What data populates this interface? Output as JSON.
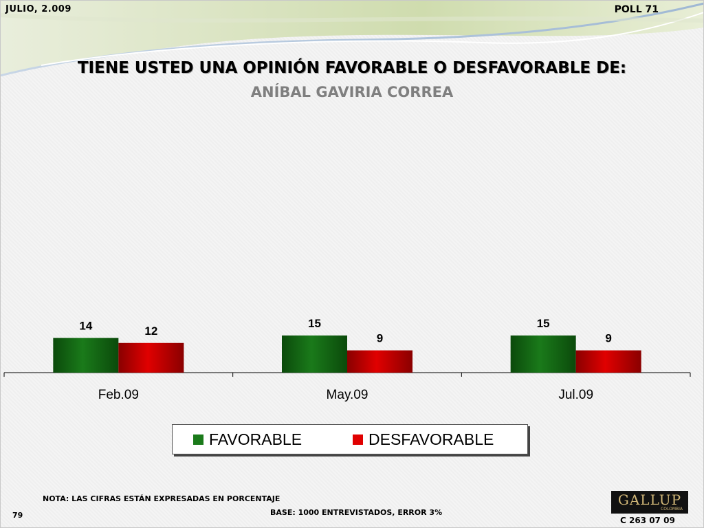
{
  "header": {
    "date": "JULIO, 2.009",
    "poll": "POLL 71"
  },
  "title": "TIENE USTED UNA OPINIÓN FAVORABLE O DESFAVORABLE DE:",
  "subtitle": "ANÍBAL GAVIRIA CORREA",
  "colors": {
    "favorable": "#1a7a1a",
    "desfavorable": "#e00000"
  },
  "chart_data": {
    "type": "bar",
    "categories": [
      "Feb.09",
      "May.09",
      "Jul.09"
    ],
    "series": [
      {
        "name": "FAVORABLE",
        "values": [
          14,
          15,
          15
        ]
      },
      {
        "name": "DESFAVORABLE",
        "values": [
          12,
          9,
          9
        ]
      }
    ],
    "ylim": [
      0,
      15
    ],
    "legend": "bottom",
    "grid": false
  },
  "footer": {
    "note": "NOTA: LAS CIFRAS ESTÁN EXPRESADAS EN PORCENTAJE",
    "base": "BASE: 1000 ENTREVISTADOS, ERROR 3%",
    "page": "79",
    "logo": "GALLUP",
    "logo_sub": "COLOMBIA",
    "code": "C 263 07 09"
  }
}
